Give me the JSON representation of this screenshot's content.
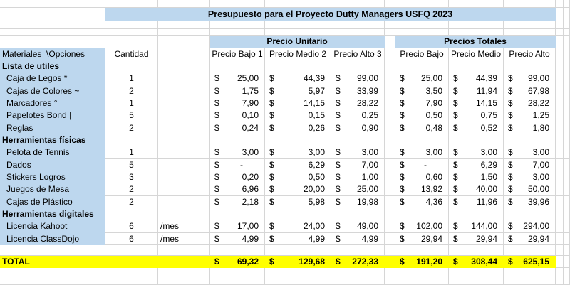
{
  "sheet": {
    "title": "Presupuesto para el Proyecto Dutty Managers USFQ 2023",
    "currency_symbol": "$",
    "group_headers": {
      "unit_prices": "Precio Unitario",
      "total_prices": "Precios Totales"
    },
    "column_headers": {
      "materials": "Materiales  \\Opciones",
      "quantity": "Cantidad",
      "unit_low": "Precio Bajo 1",
      "unit_mid": "Precio Medio 2",
      "unit_high": "Precio Alto 3",
      "total_low": "Precio Bajo",
      "total_mid": "Precio Medio",
      "total_high": "Precio Alto"
    },
    "sections": [
      {
        "header": "Lista de utiles",
        "items": [
          {
            "name": "Caja de Legos *",
            "qty": "1",
            "per": "",
            "unit": [
              "25,00",
              "44,39",
              "99,00"
            ],
            "total": [
              "25,00",
              "44,39",
              "99,00"
            ]
          },
          {
            "name": "Cajas de Colores ~",
            "qty": "2",
            "per": "",
            "unit": [
              "1,75",
              "5,97",
              "33,99"
            ],
            "total": [
              "3,50",
              "11,94",
              "67,98"
            ]
          },
          {
            "name": "Marcadores °",
            "qty": "1",
            "per": "",
            "unit": [
              "7,90",
              "14,15",
              "28,22"
            ],
            "total": [
              "7,90",
              "14,15",
              "28,22"
            ]
          },
          {
            "name": "Papelotes Bond |",
            "qty": "5",
            "per": "",
            "unit": [
              "0,10",
              "0,15",
              "0,25"
            ],
            "total": [
              "0,50",
              "0,75",
              "1,25"
            ]
          },
          {
            "name": "Reglas",
            "qty": "2",
            "per": "",
            "unit": [
              "0,24",
              "0,26",
              "0,90"
            ],
            "total": [
              "0,48",
              "0,52",
              "1,80"
            ]
          }
        ]
      },
      {
        "header": "Herramientas físicas",
        "items": [
          {
            "name": "Pelota de Tennis",
            "qty": "1",
            "per": "",
            "unit": [
              "3,00",
              "3,00",
              "3,00"
            ],
            "total": [
              "3,00",
              "3,00",
              "3,00"
            ]
          },
          {
            "name": "Dados",
            "qty": "5",
            "per": "",
            "unit": [
              "-",
              "6,29",
              "7,00"
            ],
            "total": [
              "-",
              "6,29",
              "7,00"
            ]
          },
          {
            "name": "Stickers Logros",
            "qty": "3",
            "per": "",
            "unit": [
              "0,20",
              "0,50",
              "1,00"
            ],
            "total": [
              "0,60",
              "1,50",
              "3,00"
            ]
          },
          {
            "name": "Juegos de Mesa",
            "qty": "2",
            "per": "",
            "unit": [
              "6,96",
              "20,00",
              "25,00"
            ],
            "total": [
              "13,92",
              "40,00",
              "50,00"
            ]
          },
          {
            "name": "Cajas de Plástico",
            "qty": "2",
            "per": "",
            "unit": [
              "2,18",
              "5,98",
              "19,98"
            ],
            "total": [
              "4,36",
              "11,96",
              "39,96"
            ]
          }
        ]
      },
      {
        "header": "Herramientas digitales",
        "items": [
          {
            "name": "Licencia Kahoot",
            "qty": "6",
            "per": "/mes",
            "unit": [
              "17,00",
              "24,00",
              "49,00"
            ],
            "total": [
              "102,00",
              "144,00",
              "294,00"
            ]
          },
          {
            "name": "Licencia ClassDojo",
            "qty": "6",
            "per": "/mes",
            "unit": [
              "4,99",
              "4,99",
              "4,99"
            ],
            "total": [
              "29,94",
              "29,94",
              "29,94"
            ]
          }
        ]
      }
    ],
    "total_row": {
      "label": "TOTAL",
      "unit": [
        "69,32",
        "129,68",
        "272,33"
      ],
      "total": [
        "191,20",
        "308,44",
        "625,15"
      ]
    },
    "colors": {
      "band_blue": "#BDD7EE",
      "total_yellow": "#FFFF00",
      "gridline": "#D6D6D6"
    }
  }
}
